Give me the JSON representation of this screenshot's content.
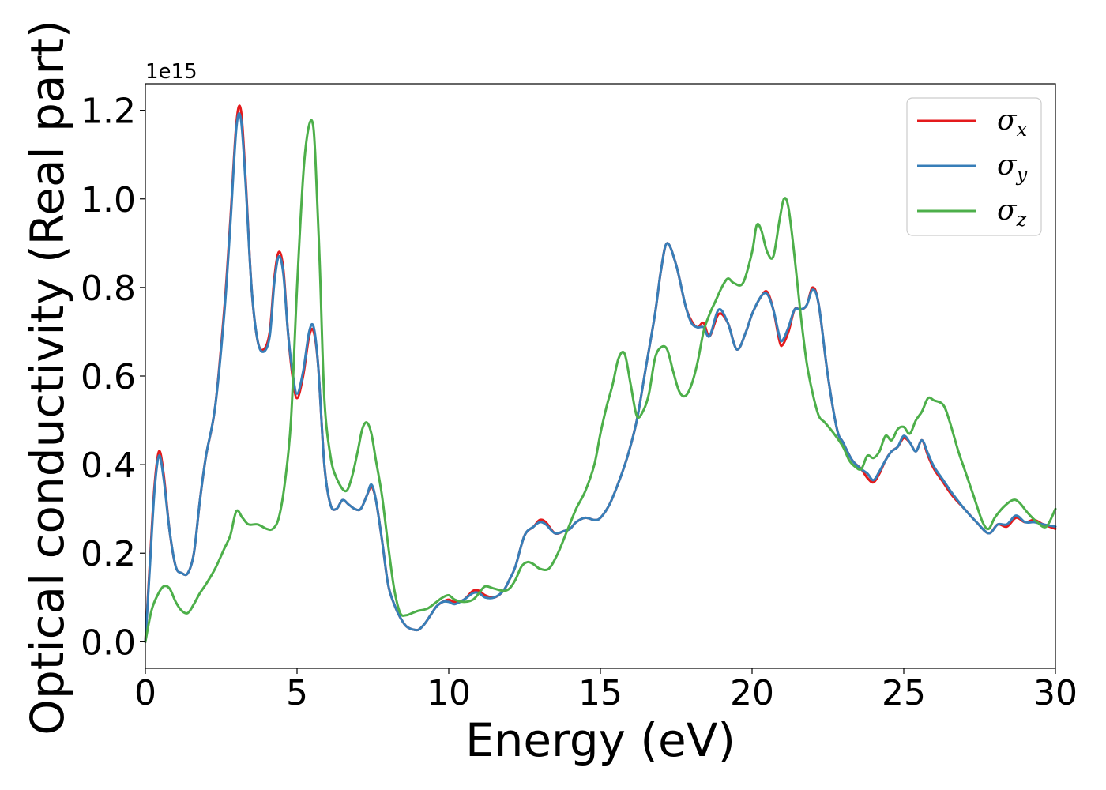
{
  "chart_data": {
    "type": "line",
    "xlabel": "Energy (eV)",
    "ylabel": "Optical conductivity (Real part)",
    "y_offset_label": "1e15",
    "xlim": [
      0,
      30
    ],
    "ylim": [
      -0.06,
      1.26
    ],
    "x_ticks": [
      0,
      5,
      10,
      15,
      20,
      25,
      30
    ],
    "x_tick_labels": [
      "0",
      "5",
      "10",
      "15",
      "20",
      "25",
      "30"
    ],
    "y_ticks": [
      0.0,
      0.2,
      0.4,
      0.6,
      0.8,
      1.0,
      1.2
    ],
    "y_tick_labels": [
      "0.0",
      "0.2",
      "0.4",
      "0.6",
      "0.8",
      "1.0",
      "1.2"
    ],
    "grid": false,
    "legend_position": "top-right",
    "series": [
      {
        "name": "σx",
        "symbol": "σ",
        "subscript": "x",
        "color": "#e41a1c",
        "x": [
          0,
          0.15,
          0.3,
          0.45,
          0.6,
          0.8,
          1.0,
          1.2,
          1.4,
          1.6,
          1.8,
          2.0,
          2.3,
          2.6,
          2.8,
          3.0,
          3.15,
          3.3,
          3.5,
          3.7,
          3.9,
          4.1,
          4.25,
          4.4,
          4.55,
          4.7,
          4.85,
          5.0,
          5.2,
          5.4,
          5.55,
          5.7,
          5.9,
          6.1,
          6.3,
          6.5,
          6.7,
          6.9,
          7.1,
          7.3,
          7.45,
          7.6,
          7.8,
          8.0,
          8.2,
          8.4,
          8.6,
          8.8,
          9.0,
          9.2,
          9.4,
          9.6,
          9.8,
          10.0,
          10.2,
          10.5,
          10.8,
          11.0,
          11.2,
          11.5,
          11.8,
          12.0,
          12.2,
          12.5,
          12.8,
          13.0,
          13.2,
          13.5,
          13.8,
          14.0,
          14.2,
          14.5,
          14.8,
          15.0,
          15.3,
          15.6,
          15.9,
          16.2,
          16.5,
          16.8,
          17.0,
          17.2,
          17.5,
          17.8,
          18.0,
          18.2,
          18.4,
          18.6,
          18.9,
          19.2,
          19.5,
          19.8,
          20.0,
          20.3,
          20.5,
          20.7,
          20.9,
          21.0,
          21.2,
          21.4,
          21.6,
          21.8,
          22.0,
          22.2,
          22.5,
          22.8,
          23.0,
          23.3,
          23.6,
          23.8,
          24.0,
          24.2,
          24.4,
          24.6,
          24.8,
          25.0,
          25.2,
          25.4,
          25.6,
          25.8,
          26.0,
          26.3,
          26.6,
          27.0,
          27.4,
          27.8,
          28.1,
          28.4,
          28.7,
          29.0,
          29.3,
          29.6,
          30.0
        ],
        "y": [
          0.0,
          0.18,
          0.35,
          0.43,
          0.38,
          0.25,
          0.17,
          0.155,
          0.155,
          0.2,
          0.32,
          0.42,
          0.53,
          0.75,
          0.95,
          1.17,
          1.2,
          1.05,
          0.8,
          0.68,
          0.66,
          0.7,
          0.82,
          0.88,
          0.84,
          0.7,
          0.6,
          0.55,
          0.6,
          0.69,
          0.7,
          0.62,
          0.4,
          0.31,
          0.3,
          0.32,
          0.31,
          0.3,
          0.3,
          0.33,
          0.35,
          0.32,
          0.23,
          0.13,
          0.085,
          0.055,
          0.035,
          0.028,
          0.027,
          0.04,
          0.06,
          0.08,
          0.09,
          0.095,
          0.09,
          0.095,
          0.115,
          0.115,
          0.105,
          0.1,
          0.115,
          0.14,
          0.17,
          0.24,
          0.26,
          0.275,
          0.27,
          0.245,
          0.25,
          0.255,
          0.27,
          0.28,
          0.275,
          0.28,
          0.31,
          0.36,
          0.42,
          0.5,
          0.62,
          0.74,
          0.84,
          0.9,
          0.85,
          0.76,
          0.725,
          0.71,
          0.72,
          0.69,
          0.74,
          0.72,
          0.66,
          0.7,
          0.74,
          0.78,
          0.79,
          0.75,
          0.68,
          0.67,
          0.7,
          0.75,
          0.75,
          0.76,
          0.8,
          0.76,
          0.6,
          0.48,
          0.45,
          0.41,
          0.39,
          0.37,
          0.36,
          0.38,
          0.41,
          0.43,
          0.44,
          0.46,
          0.45,
          0.43,
          0.455,
          0.42,
          0.39,
          0.36,
          0.33,
          0.3,
          0.27,
          0.245,
          0.265,
          0.26,
          0.28,
          0.27,
          0.275,
          0.265,
          0.255
        ]
      },
      {
        "name": "σy",
        "symbol": "σ",
        "subscript": "y",
        "color": "#377eb8",
        "x": [
          0,
          0.15,
          0.3,
          0.45,
          0.6,
          0.8,
          1.0,
          1.2,
          1.4,
          1.6,
          1.8,
          2.0,
          2.3,
          2.6,
          2.8,
          3.0,
          3.15,
          3.3,
          3.5,
          3.7,
          3.9,
          4.1,
          4.25,
          4.4,
          4.55,
          4.7,
          4.85,
          5.0,
          5.2,
          5.4,
          5.55,
          5.7,
          5.9,
          6.1,
          6.3,
          6.5,
          6.7,
          6.9,
          7.1,
          7.3,
          7.45,
          7.6,
          7.8,
          8.0,
          8.2,
          8.4,
          8.6,
          8.8,
          9.0,
          9.2,
          9.4,
          9.6,
          9.8,
          10.0,
          10.2,
          10.5,
          10.8,
          11.0,
          11.2,
          11.5,
          11.8,
          12.0,
          12.2,
          12.5,
          12.8,
          13.0,
          13.2,
          13.5,
          13.8,
          14.0,
          14.2,
          14.5,
          14.8,
          15.0,
          15.3,
          15.6,
          15.9,
          16.2,
          16.5,
          16.8,
          17.0,
          17.2,
          17.5,
          17.8,
          18.0,
          18.2,
          18.4,
          18.6,
          18.9,
          19.2,
          19.5,
          19.8,
          20.0,
          20.3,
          20.5,
          20.7,
          20.9,
          21.0,
          21.2,
          21.4,
          21.6,
          21.8,
          22.0,
          22.2,
          22.5,
          22.8,
          23.0,
          23.3,
          23.6,
          23.8,
          24.0,
          24.2,
          24.4,
          24.6,
          24.8,
          25.0,
          25.2,
          25.4,
          25.6,
          25.8,
          26.0,
          26.3,
          26.6,
          27.0,
          27.4,
          27.8,
          28.1,
          28.4,
          28.7,
          29.0,
          29.3,
          29.6,
          30.0
        ],
        "y": [
          0.0,
          0.17,
          0.34,
          0.42,
          0.37,
          0.25,
          0.17,
          0.155,
          0.155,
          0.2,
          0.32,
          0.42,
          0.53,
          0.74,
          0.94,
          1.16,
          1.18,
          1.04,
          0.8,
          0.68,
          0.655,
          0.69,
          0.81,
          0.87,
          0.83,
          0.7,
          0.61,
          0.56,
          0.61,
          0.7,
          0.71,
          0.62,
          0.4,
          0.31,
          0.3,
          0.32,
          0.31,
          0.3,
          0.3,
          0.33,
          0.355,
          0.32,
          0.23,
          0.13,
          0.085,
          0.055,
          0.035,
          0.028,
          0.027,
          0.04,
          0.06,
          0.08,
          0.09,
          0.09,
          0.085,
          0.095,
          0.11,
          0.11,
          0.1,
          0.1,
          0.115,
          0.14,
          0.17,
          0.24,
          0.26,
          0.27,
          0.265,
          0.245,
          0.25,
          0.255,
          0.27,
          0.28,
          0.275,
          0.28,
          0.31,
          0.36,
          0.42,
          0.5,
          0.62,
          0.74,
          0.84,
          0.9,
          0.85,
          0.76,
          0.72,
          0.71,
          0.71,
          0.69,
          0.75,
          0.72,
          0.66,
          0.7,
          0.74,
          0.78,
          0.785,
          0.75,
          0.69,
          0.68,
          0.71,
          0.75,
          0.75,
          0.76,
          0.795,
          0.76,
          0.6,
          0.48,
          0.45,
          0.41,
          0.39,
          0.38,
          0.365,
          0.385,
          0.41,
          0.43,
          0.44,
          0.465,
          0.45,
          0.43,
          0.455,
          0.425,
          0.395,
          0.365,
          0.335,
          0.3,
          0.27,
          0.245,
          0.265,
          0.265,
          0.285,
          0.27,
          0.27,
          0.265,
          0.26
        ]
      },
      {
        "name": "σz",
        "symbol": "σ",
        "subscript": "z",
        "color": "#4daf4a",
        "x": [
          0,
          0.2,
          0.4,
          0.6,
          0.8,
          1.0,
          1.2,
          1.4,
          1.6,
          1.8,
          2.0,
          2.3,
          2.6,
          2.8,
          3.0,
          3.2,
          3.4,
          3.7,
          4.0,
          4.2,
          4.4,
          4.6,
          4.8,
          5.0,
          5.2,
          5.35,
          5.5,
          5.6,
          5.75,
          5.9,
          6.1,
          6.3,
          6.6,
          6.8,
          7.0,
          7.15,
          7.3,
          7.45,
          7.6,
          7.8,
          8.0,
          8.2,
          8.4,
          8.6,
          8.8,
          9.0,
          9.3,
          9.6,
          9.8,
          10.0,
          10.2,
          10.5,
          10.8,
          11.0,
          11.2,
          11.5,
          11.8,
          12.0,
          12.2,
          12.4,
          12.6,
          12.8,
          13.0,
          13.3,
          13.6,
          13.9,
          14.2,
          14.5,
          14.8,
          15.0,
          15.2,
          15.4,
          15.6,
          15.8,
          16.0,
          16.2,
          16.4,
          16.6,
          16.8,
          17.0,
          17.2,
          17.4,
          17.6,
          17.8,
          18.0,
          18.2,
          18.4,
          18.6,
          18.8,
          19.0,
          19.2,
          19.4,
          19.7,
          20.0,
          20.15,
          20.3,
          20.5,
          20.7,
          20.9,
          21.05,
          21.2,
          21.4,
          21.6,
          21.8,
          22.0,
          22.2,
          22.4,
          22.7,
          23.0,
          23.2,
          23.4,
          23.6,
          23.8,
          24.0,
          24.2,
          24.4,
          24.6,
          24.8,
          25.0,
          25.2,
          25.4,
          25.6,
          25.8,
          26.0,
          26.3,
          26.5,
          26.8,
          27.0,
          27.3,
          27.6,
          27.8,
          28.0,
          28.3,
          28.6,
          28.8,
          29.1,
          29.4,
          29.7,
          30.0
        ],
        "y": [
          0.0,
          0.07,
          0.105,
          0.125,
          0.12,
          0.09,
          0.07,
          0.065,
          0.085,
          0.11,
          0.13,
          0.165,
          0.21,
          0.24,
          0.295,
          0.28,
          0.265,
          0.265,
          0.255,
          0.255,
          0.28,
          0.36,
          0.5,
          0.8,
          1.05,
          1.15,
          1.175,
          1.1,
          0.85,
          0.55,
          0.42,
          0.37,
          0.34,
          0.37,
          0.43,
          0.48,
          0.495,
          0.47,
          0.41,
          0.33,
          0.22,
          0.12,
          0.065,
          0.06,
          0.065,
          0.07,
          0.075,
          0.09,
          0.1,
          0.105,
          0.095,
          0.09,
          0.095,
          0.11,
          0.125,
          0.12,
          0.115,
          0.12,
          0.14,
          0.17,
          0.18,
          0.175,
          0.165,
          0.165,
          0.2,
          0.25,
          0.3,
          0.34,
          0.4,
          0.47,
          0.53,
          0.58,
          0.64,
          0.65,
          0.58,
          0.51,
          0.52,
          0.56,
          0.64,
          0.665,
          0.66,
          0.61,
          0.565,
          0.555,
          0.58,
          0.63,
          0.7,
          0.74,
          0.77,
          0.8,
          0.82,
          0.81,
          0.81,
          0.88,
          0.94,
          0.93,
          0.88,
          0.87,
          0.95,
          1.0,
          0.98,
          0.87,
          0.74,
          0.63,
          0.56,
          0.51,
          0.495,
          0.47,
          0.44,
          0.41,
          0.395,
          0.39,
          0.42,
          0.415,
          0.43,
          0.465,
          0.455,
          0.48,
          0.485,
          0.47,
          0.5,
          0.52,
          0.55,
          0.545,
          0.535,
          0.5,
          0.43,
          0.39,
          0.33,
          0.27,
          0.255,
          0.28,
          0.305,
          0.32,
          0.315,
          0.29,
          0.27,
          0.26,
          0.3
        ]
      }
    ]
  }
}
